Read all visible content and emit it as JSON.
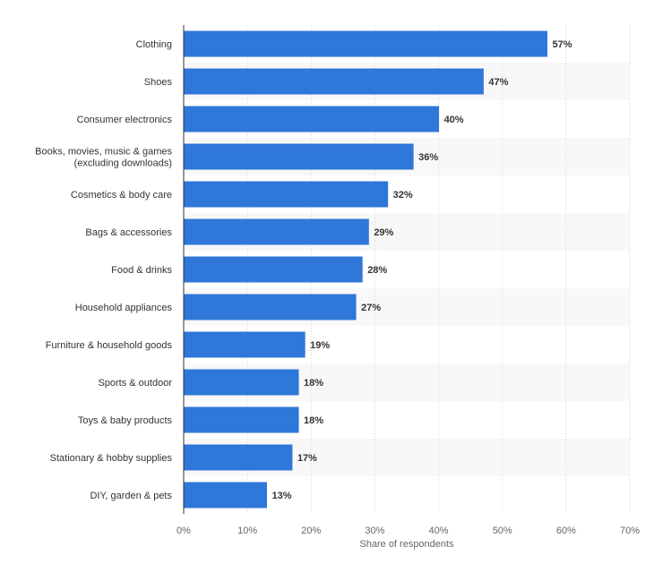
{
  "chart_data": {
    "type": "bar",
    "orientation": "horizontal",
    "categories": [
      [
        "Clothing"
      ],
      [
        "Shoes"
      ],
      [
        "Consumer electronics"
      ],
      [
        "Books, movies, music & games",
        "(excluding downloads)"
      ],
      [
        "Cosmetics & body care"
      ],
      [
        "Bags & accessories"
      ],
      [
        "Food & drinks"
      ],
      [
        "Household appliances"
      ],
      [
        "Furniture & household goods"
      ],
      [
        "Sports & outdoor"
      ],
      [
        "Toys & baby products"
      ],
      [
        "Stationary & hobby supplies"
      ],
      [
        "DIY, garden & pets"
      ]
    ],
    "values": [
      57,
      47,
      40,
      36,
      32,
      29,
      28,
      27,
      19,
      18,
      18,
      17,
      13
    ],
    "value_labels": [
      "57%",
      "47%",
      "40%",
      "36%",
      "32%",
      "29%",
      "28%",
      "27%",
      "19%",
      "18%",
      "18%",
      "17%",
      "13%"
    ],
    "xlim": [
      0,
      70
    ],
    "ticks": [
      0,
      10,
      20,
      30,
      40,
      50,
      60,
      70
    ],
    "tick_labels": [
      "0%",
      "10%",
      "20%",
      "30%",
      "40%",
      "50%",
      "60%",
      "70%"
    ],
    "xlabel": "Share of respondents",
    "ylabel": "",
    "title": "",
    "grid": true,
    "bar_color": "#2f77d9",
    "band_color": "#f8f8f8",
    "grid_color": "#d2d2d2"
  }
}
